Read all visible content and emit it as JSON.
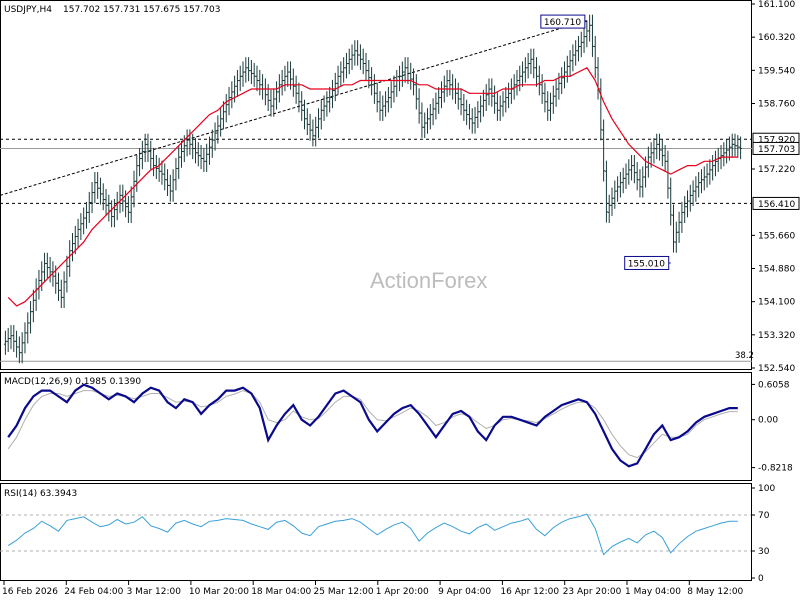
{
  "header": {
    "symbol": "USDJPY,H4",
    "ohlc": "157.702 157.731 157.675 157.703"
  },
  "watermark": "ActionForex",
  "colors": {
    "candle": "#1b3a3a",
    "ma": "#e8001c",
    "dotted": "#000000",
    "macd": "#0a0a8c",
    "signal": "#b0b0b0",
    "rsi": "#3aa0d8",
    "grid": "#d0d0d0",
    "axis_bg": "#ffffff"
  },
  "chart_data": [
    {
      "type": "candlestick",
      "panel": "price",
      "ylim": [
        152.54,
        161.1
      ],
      "y_ticks": [
        "161.100",
        "160.320",
        "159.540",
        "158.760",
        "157.920",
        "157.220",
        "156.410",
        "155.660",
        "154.880",
        "154.100",
        "153.320",
        "152.540"
      ],
      "axis_label_values": [
        161.1,
        160.32,
        159.54,
        158.76,
        157.22,
        155.66,
        154.88,
        154.1,
        153.32,
        152.54
      ],
      "highlighted_labels": [
        {
          "text": "157.920",
          "value": 157.92
        },
        {
          "text": "157.703",
          "value": 157.703
        },
        {
          "text": "156.410",
          "value": 156.41
        }
      ],
      "horizontal_lines": [
        {
          "value": 157.92,
          "style": "dashed"
        },
        {
          "value": 156.41,
          "style": "dashed"
        },
        {
          "value": 157.703,
          "style": "solid-gray"
        },
        {
          "value": 152.7,
          "style": "solid-gray",
          "label": "38.2"
        }
      ],
      "annotations": [
        {
          "text": "160.710",
          "value": 160.71,
          "position": "top-right"
        },
        {
          "text": "155.010",
          "value": 155.01,
          "position": "bottom-right"
        }
      ],
      "trendline": {
        "from": {
          "x": "16 Feb 2026",
          "value": 156.6
        },
        "to": {
          "x": "29 Apr 2026",
          "value": 160.71
        }
      },
      "series": [
        {
          "name": "price",
          "values": [
            153.3,
            152.9,
            153.6,
            154.4,
            155.0,
            154.7,
            154.2,
            155.3,
            155.8,
            156.2,
            156.9,
            156.5,
            156.1,
            156.6,
            156.2,
            157.3,
            157.8,
            157.3,
            157.1,
            156.7,
            157.5,
            157.9,
            157.6,
            157.4,
            157.9,
            158.4,
            158.9,
            159.3,
            159.6,
            159.4,
            159.1,
            158.7,
            159.2,
            159.5,
            159.0,
            158.4,
            158.0,
            158.6,
            158.9,
            159.4,
            159.7,
            160.0,
            159.7,
            159.2,
            158.6,
            158.9,
            159.3,
            159.6,
            159.2,
            158.2,
            158.5,
            158.9,
            159.3,
            159.0,
            158.6,
            158.3,
            158.7,
            159.1,
            158.6,
            158.9,
            159.2,
            159.5,
            159.8,
            159.2,
            158.6,
            159.1,
            159.5,
            159.9,
            160.2,
            160.6,
            159.1,
            156.2,
            156.7,
            157.0,
            157.3,
            156.8,
            157.5,
            157.8,
            157.4,
            155.5,
            156.2,
            156.6,
            156.9,
            157.1,
            157.4,
            157.6,
            157.8,
            157.7
          ]
        },
        {
          "name": "ma",
          "values": [
            154.2,
            154.0,
            154.1,
            154.3,
            154.5,
            154.7,
            154.9,
            155.1,
            155.3,
            155.5,
            155.8,
            156.0,
            156.2,
            156.4,
            156.6,
            156.8,
            157.0,
            157.2,
            157.3,
            157.5,
            157.7,
            157.9,
            158.1,
            158.3,
            158.5,
            158.6,
            158.8,
            158.9,
            159.0,
            159.1,
            159.1,
            159.1,
            159.1,
            159.2,
            159.2,
            159.2,
            159.1,
            159.1,
            159.1,
            159.1,
            159.2,
            159.2,
            159.3,
            159.3,
            159.3,
            159.3,
            159.3,
            159.3,
            159.3,
            159.2,
            159.2,
            159.1,
            159.1,
            159.1,
            159.1,
            159.0,
            159.0,
            159.0,
            159.0,
            159.1,
            159.1,
            159.2,
            159.2,
            159.2,
            159.3,
            159.3,
            159.4,
            159.4,
            159.5,
            159.6,
            159.3,
            158.8,
            158.4,
            158.1,
            157.8,
            157.6,
            157.4,
            157.3,
            157.2,
            157.1,
            157.2,
            157.3,
            157.3,
            157.4,
            157.4,
            157.5,
            157.5,
            157.5
          ]
        }
      ]
    },
    {
      "type": "line",
      "panel": "macd",
      "title": "MACD(12,26,9) 0.1985 0.1390",
      "ylim": [
        -1.0,
        0.75
      ],
      "y_ticks": [
        "0.6058",
        "0.00",
        "-0.8218"
      ],
      "series": [
        {
          "name": "macd",
          "values": [
            -0.3,
            -0.1,
            0.2,
            0.4,
            0.5,
            0.5,
            0.4,
            0.3,
            0.5,
            0.6,
            0.55,
            0.45,
            0.35,
            0.45,
            0.4,
            0.3,
            0.45,
            0.55,
            0.5,
            0.3,
            0.2,
            0.35,
            0.3,
            0.1,
            0.25,
            0.35,
            0.5,
            0.5,
            0.55,
            0.45,
            0.2,
            -0.35,
            -0.1,
            0.1,
            0.25,
            0.0,
            -0.1,
            0.05,
            0.25,
            0.45,
            0.5,
            0.4,
            0.3,
            0.0,
            -0.2,
            -0.05,
            0.1,
            0.2,
            0.25,
            0.1,
            -0.1,
            -0.3,
            -0.1,
            0.1,
            0.15,
            0.05,
            -0.2,
            -0.35,
            -0.1,
            0.05,
            0.05,
            0.0,
            -0.05,
            -0.1,
            0.05,
            0.15,
            0.25,
            0.3,
            0.35,
            0.3,
            0.1,
            -0.2,
            -0.5,
            -0.7,
            -0.8,
            -0.75,
            -0.5,
            -0.25,
            -0.1,
            -0.35,
            -0.3,
            -0.2,
            -0.05,
            0.05,
            0.1,
            0.15,
            0.2,
            0.2
          ]
        },
        {
          "name": "signal",
          "values": [
            -0.5,
            -0.3,
            0.0,
            0.25,
            0.4,
            0.45,
            0.45,
            0.4,
            0.45,
            0.5,
            0.5,
            0.45,
            0.4,
            0.42,
            0.4,
            0.36,
            0.4,
            0.45,
            0.45,
            0.38,
            0.3,
            0.32,
            0.3,
            0.22,
            0.24,
            0.3,
            0.4,
            0.44,
            0.5,
            0.45,
            0.3,
            0.0,
            -0.05,
            0.0,
            0.15,
            0.05,
            0.0,
            0.02,
            0.15,
            0.3,
            0.4,
            0.4,
            0.35,
            0.15,
            0.0,
            -0.02,
            0.05,
            0.12,
            0.2,
            0.15,
            0.05,
            -0.1,
            -0.05,
            0.05,
            0.1,
            0.06,
            -0.05,
            -0.15,
            -0.1,
            0.0,
            0.02,
            0.0,
            -0.02,
            -0.05,
            0.02,
            0.1,
            0.18,
            0.25,
            0.3,
            0.3,
            0.2,
            0.0,
            -0.25,
            -0.45,
            -0.6,
            -0.65,
            -0.55,
            -0.4,
            -0.25,
            -0.3,
            -0.3,
            -0.25,
            -0.1,
            0.0,
            0.05,
            0.1,
            0.14,
            0.14
          ]
        }
      ]
    },
    {
      "type": "line",
      "panel": "rsi",
      "title": "RSI(14) 63.3943",
      "ylim": [
        0,
        100
      ],
      "y_ticks": [
        "100",
        "70",
        "30",
        "0"
      ],
      "series": [
        {
          "name": "rsi",
          "values": [
            36,
            42,
            50,
            55,
            63,
            58,
            52,
            64,
            66,
            68,
            62,
            57,
            59,
            65,
            60,
            62,
            68,
            58,
            55,
            51,
            61,
            64,
            60,
            57,
            63,
            64,
            66,
            65,
            64,
            60,
            57,
            54,
            62,
            64,
            58,
            50,
            47,
            57,
            60,
            63,
            64,
            66,
            62,
            55,
            48,
            54,
            59,
            62,
            55,
            41,
            50,
            56,
            61,
            57,
            52,
            49,
            56,
            60,
            53,
            57,
            61,
            63,
            66,
            54,
            47,
            56,
            62,
            66,
            68,
            71,
            55,
            26,
            35,
            40,
            44,
            39,
            48,
            52,
            45,
            28,
            38,
            46,
            52,
            55,
            58,
            61,
            63,
            63
          ]
        }
      ]
    }
  ],
  "x_axis": {
    "tick_labels": [
      "16 Feb 2026",
      "24 Feb 04:00",
      "3 Mar 12:00",
      "10 Mar 20:00",
      "18 Mar 04:00",
      "25 Mar 12:00",
      "1 Apr 20:00",
      "9 Apr 04:00",
      "16 Apr 12:00",
      "23 Apr 20:00",
      "1 May 04:00",
      "8 May 12:00"
    ]
  }
}
